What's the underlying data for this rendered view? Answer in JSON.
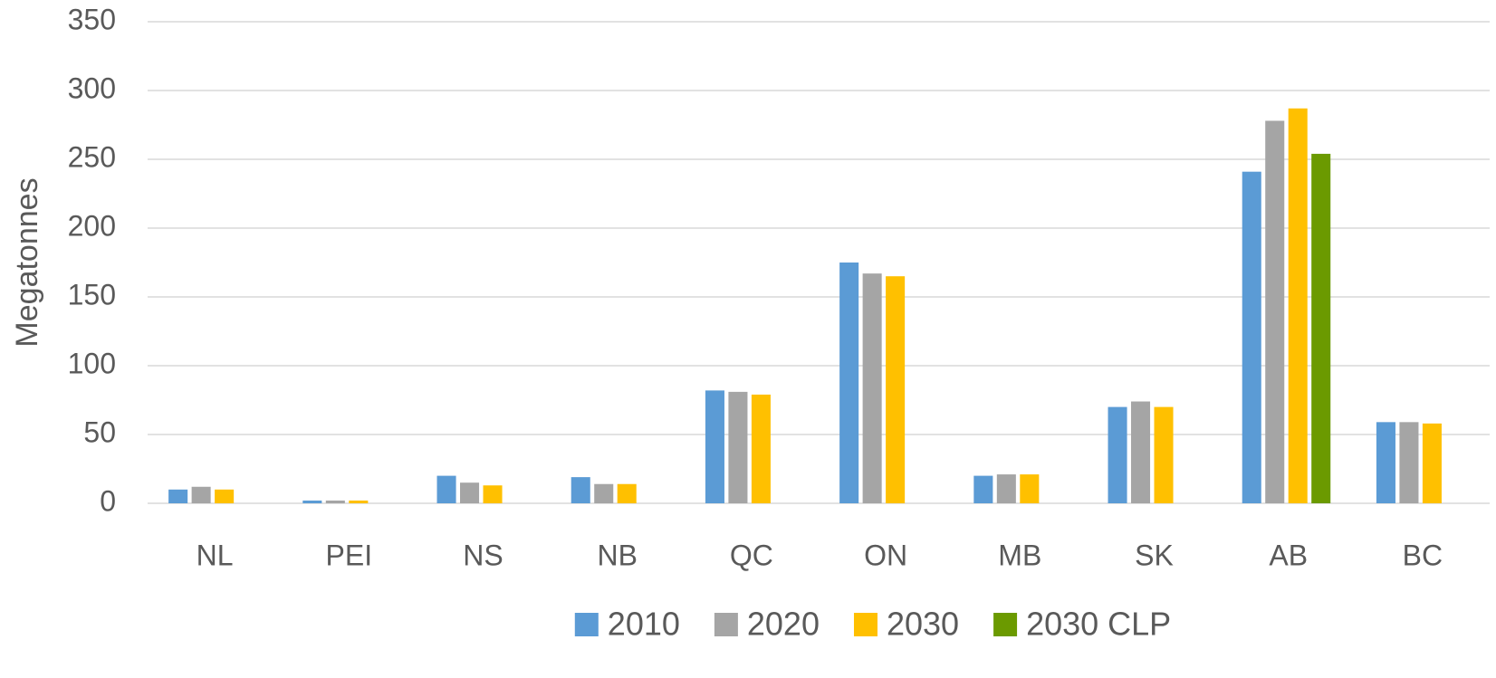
{
  "chart_data": {
    "type": "bar",
    "y_label": "Megatonnes",
    "categories": [
      "NL",
      "PEI",
      "NS",
      "NB",
      "QC",
      "ON",
      "MB",
      "SK",
      "AB",
      "BC"
    ],
    "series": [
      {
        "name": "2010",
        "color": "#5b9bd5",
        "values": [
          10,
          2,
          20,
          19,
          82,
          175,
          20,
          70,
          241,
          59
        ]
      },
      {
        "name": "2020",
        "color": "#a5a5a5",
        "values": [
          12,
          2,
          15,
          14,
          81,
          167,
          21,
          74,
          278,
          59
        ]
      },
      {
        "name": "2030",
        "color": "#ffc000",
        "values": [
          10,
          2,
          13,
          14,
          79,
          165,
          21,
          70,
          287,
          58
        ]
      },
      {
        "name": "2030 CLP",
        "color": "#6b9a00",
        "values": [
          null,
          null,
          null,
          null,
          null,
          null,
          null,
          null,
          254,
          null
        ]
      }
    ],
    "ylim": [
      0,
      350
    ],
    "yticks": [
      0,
      50,
      100,
      150,
      200,
      250,
      300,
      350
    ],
    "grid": true,
    "legend": "bottom"
  }
}
